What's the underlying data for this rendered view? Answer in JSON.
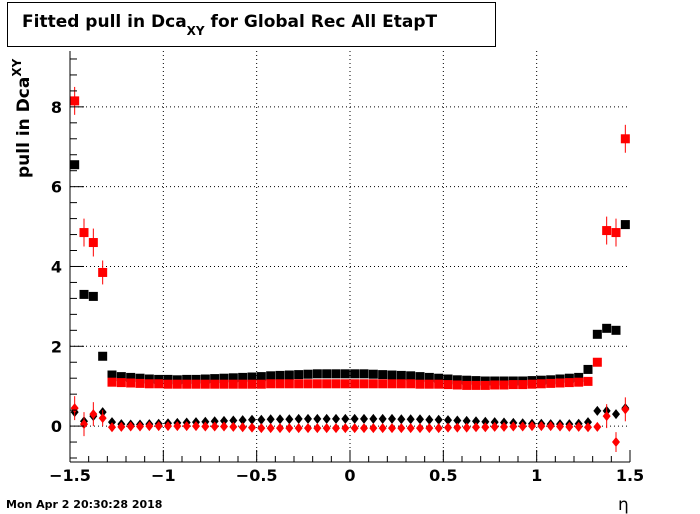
{
  "title": {
    "main": "Fitted pull in Dca",
    "sub": "XY",
    "rest": " for Global Rec All EtapT"
  },
  "ylabel": {
    "main": "pull in Dca",
    "sub": "XY"
  },
  "xlabel": "η",
  "timestamp": "Mon Apr  2 20:30:28 2018",
  "colors": {
    "black": "#000000",
    "red": "#ff0000",
    "grid": "#000000"
  },
  "chart_data": {
    "type": "scatter",
    "xlim": [
      -1.5,
      1.5
    ],
    "ylim": [
      -0.9,
      9.4
    ],
    "xticks": [
      -1.5,
      -1,
      -0.5,
      0,
      0.5,
      1,
      1.5
    ],
    "xtick_labels": [
      "−1.5",
      "−1",
      "−0.5",
      "0",
      "0.5",
      "1",
      "1.5"
    ],
    "yticks": [
      0,
      2,
      4,
      6,
      8
    ],
    "ytick_labels": [
      "0",
      "2",
      "4",
      "6",
      "8"
    ],
    "grid": true,
    "series": [
      {
        "marker": "square",
        "color": "#000000",
        "x": [
          -1.475,
          -1.425,
          -1.375,
          -1.325,
          -1.275,
          -1.225,
          -1.175,
          -1.125,
          -1.075,
          -1.025,
          -0.975,
          -0.925,
          -0.875,
          -0.825,
          -0.775,
          -0.725,
          -0.675,
          -0.625,
          -0.575,
          -0.525,
          -0.475,
          -0.425,
          -0.375,
          -0.325,
          -0.275,
          -0.225,
          -0.175,
          -0.125,
          -0.075,
          -0.025,
          0.025,
          0.075,
          0.125,
          0.175,
          0.225,
          0.275,
          0.325,
          0.375,
          0.425,
          0.475,
          0.525,
          0.575,
          0.625,
          0.675,
          0.725,
          0.775,
          0.825,
          0.875,
          0.925,
          0.975,
          1.025,
          1.075,
          1.125,
          1.175,
          1.225,
          1.275,
          1.325,
          1.375,
          1.425,
          1.475
        ],
        "y": [
          6.55,
          3.3,
          3.25,
          1.75,
          1.28,
          1.24,
          1.22,
          1.2,
          1.18,
          1.17,
          1.17,
          1.16,
          1.17,
          1.17,
          1.18,
          1.19,
          1.2,
          1.21,
          1.22,
          1.23,
          1.24,
          1.26,
          1.27,
          1.28,
          1.29,
          1.3,
          1.31,
          1.31,
          1.31,
          1.31,
          1.31,
          1.31,
          1.3,
          1.29,
          1.28,
          1.27,
          1.26,
          1.24,
          1.22,
          1.2,
          1.18,
          1.16,
          1.15,
          1.14,
          1.13,
          1.13,
          1.13,
          1.13,
          1.13,
          1.14,
          1.15,
          1.16,
          1.18,
          1.2,
          1.22,
          1.42,
          2.3,
          2.45,
          2.4,
          5.05
        ],
        "yerr": [
          0.1,
          0.06,
          0.08,
          0.05,
          0.03,
          0.02,
          0.02,
          0.02,
          0.02,
          0.02,
          0.02,
          0.02,
          0.02,
          0.02,
          0.02,
          0.02,
          0.02,
          0.02,
          0.02,
          0.02,
          0.02,
          0.02,
          0.02,
          0.02,
          0.02,
          0.02,
          0.02,
          0.02,
          0.02,
          0.02,
          0.02,
          0.02,
          0.02,
          0.02,
          0.02,
          0.02,
          0.02,
          0.02,
          0.02,
          0.02,
          0.02,
          0.02,
          0.02,
          0.02,
          0.02,
          0.02,
          0.02,
          0.02,
          0.02,
          0.02,
          0.02,
          0.02,
          0.02,
          0.02,
          0.02,
          0.04,
          0.05,
          0.06,
          0.06,
          0.08
        ]
      },
      {
        "marker": "square",
        "color": "#ff0000",
        "x": [
          -1.475,
          -1.425,
          -1.375,
          -1.325,
          -1.275,
          -1.225,
          -1.175,
          -1.125,
          -1.075,
          -1.025,
          -0.975,
          -0.925,
          -0.875,
          -0.825,
          -0.775,
          -0.725,
          -0.675,
          -0.625,
          -0.575,
          -0.525,
          -0.475,
          -0.425,
          -0.375,
          -0.325,
          -0.275,
          -0.225,
          -0.175,
          -0.125,
          -0.075,
          -0.025,
          0.025,
          0.075,
          0.125,
          0.175,
          0.225,
          0.275,
          0.325,
          0.375,
          0.425,
          0.475,
          0.525,
          0.575,
          0.625,
          0.675,
          0.725,
          0.775,
          0.825,
          0.875,
          0.925,
          0.975,
          1.025,
          1.075,
          1.125,
          1.175,
          1.225,
          1.275,
          1.325,
          1.375,
          1.425,
          1.475
        ],
        "y": [
          8.15,
          4.85,
          4.6,
          3.85,
          1.1,
          1.09,
          1.08,
          1.07,
          1.06,
          1.06,
          1.05,
          1.05,
          1.05,
          1.05,
          1.05,
          1.05,
          1.05,
          1.05,
          1.05,
          1.05,
          1.05,
          1.06,
          1.06,
          1.06,
          1.06,
          1.06,
          1.06,
          1.06,
          1.06,
          1.06,
          1.06,
          1.06,
          1.06,
          1.06,
          1.06,
          1.06,
          1.06,
          1.05,
          1.05,
          1.05,
          1.04,
          1.03,
          1.02,
          1.02,
          1.02,
          1.03,
          1.03,
          1.04,
          1.04,
          1.05,
          1.06,
          1.07,
          1.08,
          1.09,
          1.1,
          1.12,
          1.6,
          4.9,
          4.85,
          7.2
        ],
        "yerr": [
          0.35,
          0.35,
          0.35,
          0.3,
          0.05,
          0.03,
          0.03,
          0.03,
          0.03,
          0.03,
          0.03,
          0.03,
          0.03,
          0.03,
          0.03,
          0.03,
          0.03,
          0.03,
          0.03,
          0.03,
          0.03,
          0.03,
          0.03,
          0.03,
          0.03,
          0.03,
          0.03,
          0.03,
          0.03,
          0.03,
          0.03,
          0.03,
          0.03,
          0.03,
          0.03,
          0.03,
          0.03,
          0.03,
          0.03,
          0.03,
          0.03,
          0.03,
          0.03,
          0.03,
          0.03,
          0.03,
          0.03,
          0.03,
          0.03,
          0.03,
          0.03,
          0.03,
          0.03,
          0.03,
          0.03,
          0.05,
          0.08,
          0.35,
          0.35,
          0.35
        ]
      },
      {
        "marker": "diamond",
        "color": "#000000",
        "x": [
          -1.475,
          -1.425,
          -1.375,
          -1.325,
          -1.275,
          -1.225,
          -1.175,
          -1.125,
          -1.075,
          -1.025,
          -0.975,
          -0.925,
          -0.875,
          -0.825,
          -0.775,
          -0.725,
          -0.675,
          -0.625,
          -0.575,
          -0.525,
          -0.475,
          -0.425,
          -0.375,
          -0.325,
          -0.275,
          -0.225,
          -0.175,
          -0.125,
          -0.075,
          -0.025,
          0.025,
          0.075,
          0.125,
          0.175,
          0.225,
          0.275,
          0.325,
          0.375,
          0.425,
          0.475,
          0.525,
          0.575,
          0.625,
          0.675,
          0.725,
          0.775,
          0.825,
          0.875,
          0.925,
          0.975,
          1.025,
          1.075,
          1.125,
          1.175,
          1.225,
          1.275,
          1.325,
          1.375,
          1.425,
          1.475
        ],
        "y": [
          0.35,
          0.12,
          0.25,
          0.35,
          0.1,
          0.05,
          0.04,
          0.04,
          0.05,
          0.06,
          0.07,
          0.08,
          0.09,
          0.1,
          0.11,
          0.12,
          0.13,
          0.14,
          0.15,
          0.16,
          0.16,
          0.17,
          0.17,
          0.17,
          0.18,
          0.18,
          0.18,
          0.18,
          0.18,
          0.18,
          0.18,
          0.18,
          0.18,
          0.18,
          0.18,
          0.17,
          0.17,
          0.17,
          0.16,
          0.16,
          0.15,
          0.14,
          0.13,
          0.12,
          0.11,
          0.1,
          0.09,
          0.08,
          0.07,
          0.06,
          0.06,
          0.05,
          0.05,
          0.05,
          0.06,
          0.1,
          0.38,
          0.38,
          0.3,
          0.45
        ],
        "yerr": [
          0.08,
          0.05,
          0.05,
          0.04,
          0.02,
          0.02,
          0.02,
          0.02,
          0.02,
          0.02,
          0.02,
          0.02,
          0.02,
          0.02,
          0.02,
          0.02,
          0.02,
          0.02,
          0.02,
          0.02,
          0.02,
          0.02,
          0.02,
          0.02,
          0.02,
          0.02,
          0.02,
          0.02,
          0.02,
          0.02,
          0.02,
          0.02,
          0.02,
          0.02,
          0.02,
          0.02,
          0.02,
          0.02,
          0.02,
          0.02,
          0.02,
          0.02,
          0.02,
          0.02,
          0.02,
          0.02,
          0.02,
          0.02,
          0.02,
          0.02,
          0.02,
          0.02,
          0.02,
          0.02,
          0.02,
          0.03,
          0.04,
          0.05,
          0.05,
          0.08
        ]
      },
      {
        "marker": "diamond",
        "color": "#ff0000",
        "x": [
          -1.475,
          -1.425,
          -1.375,
          -1.325,
          -1.275,
          -1.225,
          -1.175,
          -1.125,
          -1.075,
          -1.025,
          -0.975,
          -0.925,
          -0.875,
          -0.825,
          -0.775,
          -0.725,
          -0.675,
          -0.625,
          -0.575,
          -0.525,
          -0.475,
          -0.425,
          -0.375,
          -0.325,
          -0.275,
          -0.225,
          -0.175,
          -0.125,
          -0.075,
          -0.025,
          0.025,
          0.075,
          0.125,
          0.175,
          0.225,
          0.275,
          0.325,
          0.375,
          0.425,
          0.475,
          0.525,
          0.575,
          0.625,
          0.675,
          0.725,
          0.775,
          0.825,
          0.875,
          0.925,
          0.975,
          1.025,
          1.075,
          1.125,
          1.175,
          1.225,
          1.275,
          1.325,
          1.375,
          1.425,
          1.475
        ],
        "y": [
          0.45,
          0.05,
          0.3,
          0.2,
          -0.03,
          -0.02,
          -0.01,
          -0.01,
          0.0,
          0.0,
          0.0,
          0.0,
          0.0,
          0.0,
          -0.01,
          -0.01,
          -0.01,
          -0.02,
          -0.03,
          -0.04,
          -0.05,
          -0.05,
          -0.05,
          -0.05,
          -0.05,
          -0.05,
          -0.05,
          -0.05,
          -0.05,
          -0.05,
          -0.05,
          -0.05,
          -0.05,
          -0.05,
          -0.05,
          -0.05,
          -0.05,
          -0.05,
          -0.05,
          -0.05,
          -0.04,
          -0.04,
          -0.04,
          -0.03,
          -0.03,
          -0.02,
          -0.02,
          -0.01,
          -0.01,
          0.0,
          0.0,
          0.0,
          -0.01,
          -0.02,
          -0.02,
          -0.03,
          -0.02,
          0.25,
          -0.4,
          0.42
        ],
        "yerr": [
          0.3,
          0.3,
          0.3,
          0.2,
          0.03,
          0.02,
          0.02,
          0.02,
          0.02,
          0.02,
          0.02,
          0.02,
          0.02,
          0.02,
          0.02,
          0.02,
          0.02,
          0.02,
          0.02,
          0.02,
          0.02,
          0.02,
          0.02,
          0.02,
          0.02,
          0.02,
          0.02,
          0.02,
          0.02,
          0.02,
          0.02,
          0.02,
          0.02,
          0.02,
          0.02,
          0.02,
          0.02,
          0.02,
          0.02,
          0.02,
          0.02,
          0.02,
          0.02,
          0.02,
          0.02,
          0.02,
          0.02,
          0.02,
          0.02,
          0.02,
          0.02,
          0.02,
          0.02,
          0.02,
          0.02,
          0.03,
          0.05,
          0.3,
          0.25,
          0.3
        ]
      }
    ]
  }
}
